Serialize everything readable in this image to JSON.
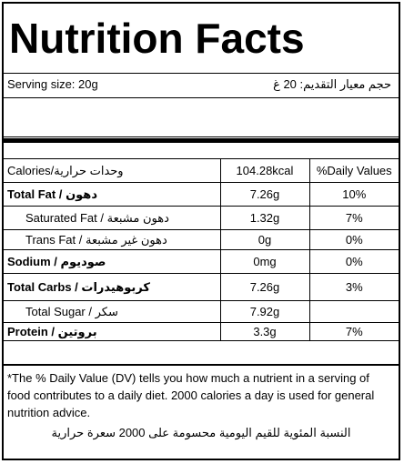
{
  "title": "Nutrition Facts",
  "serving": {
    "en": "Serving size: 20g",
    "ar": "حجم معيار التقديم: 20 غ"
  },
  "header_row": {
    "label": "Calories/وحدات حرارية",
    "amount": "104.28kcal",
    "dv": "%Daily Values"
  },
  "rows": [
    {
      "label_en": "Total Fat /",
      "label_ar": "دهون",
      "amount": "7.26g",
      "dv": "10%"
    },
    {
      "label_en": "Saturated Fat /",
      "label_ar": "دهون مشبعة",
      "amount": "1.32g",
      "dv": "7%"
    },
    {
      "label_en": "Trans Fat /",
      "label_ar": "دهون غير مشبعة",
      "amount": "0g",
      "dv": "0%"
    },
    {
      "label_en": "Sodium /",
      "label_ar": "صوديوم",
      "amount": "0mg",
      "dv": "0%"
    },
    {
      "label_en": "Total Carbs /",
      "label_ar": "كربوهيدرات",
      "amount": "7.26g",
      "dv": "3%"
    },
    {
      "label_en": "Total Sugar /",
      "label_ar": "سكر",
      "amount": "7.92g",
      "dv": ""
    },
    {
      "label_en": "Protein /",
      "label_ar": "بروتين",
      "amount": "3.3g",
      "dv": "7%"
    }
  ],
  "footnote": {
    "en": "*The % Daily Value (DV) tells you how much a nutrient in a serving of food contributes to a daily diet. 2000 calories a day is used for general nutrition advice.",
    "ar": "النسبة المئوية للقيم اليومية محسومة على 2000 سعرة حرارية"
  }
}
